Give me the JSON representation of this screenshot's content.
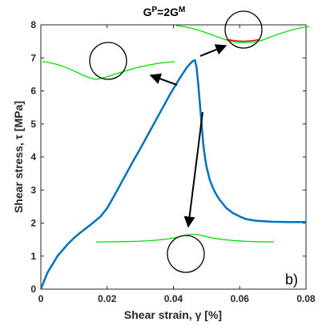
{
  "chart_data": {
    "type": "line",
    "title": "G^P=2G^M",
    "title_parts": {
      "base1": "G",
      "sup1": "P",
      "mid": "=2G",
      "sup2": "M"
    },
    "xlabel": "Shear strain, γ [%]",
    "ylabel": "Shear stress, τ [MPa]",
    "xlim": [
      0,
      0.08
    ],
    "ylim": [
      0,
      8
    ],
    "xticks": [
      0,
      0.02,
      0.04,
      0.06,
      0.08
    ],
    "xtick_labels": [
      "0",
      "0.02",
      "0.04",
      "0.06",
      "0.08"
    ],
    "yticks": [
      0,
      1,
      2,
      3,
      4,
      5,
      6,
      7,
      8
    ],
    "ytick_labels": [
      "0",
      "1",
      "2",
      "3",
      "4",
      "5",
      "6",
      "7",
      "8"
    ],
    "panel_label": "b)",
    "grid": false,
    "series": [
      {
        "color": "#0072bd",
        "x": [
          0,
          0.002,
          0.005,
          0.008,
          0.01,
          0.012,
          0.015,
          0.018,
          0.02,
          0.022,
          0.025,
          0.028,
          0.03,
          0.033,
          0.036,
          0.039,
          0.042,
          0.044,
          0.045,
          0.0458,
          0.0465,
          0.047,
          0.0475,
          0.048,
          0.0485,
          0.049,
          0.0495,
          0.05,
          0.051,
          0.052,
          0.053,
          0.054,
          0.056,
          0.058,
          0.06,
          0.062,
          0.065,
          0.07,
          0.075,
          0.078,
          0.08
        ],
        "y": [
          0,
          0.5,
          1.0,
          1.35,
          1.55,
          1.72,
          1.95,
          2.2,
          2.45,
          2.8,
          3.35,
          3.9,
          4.25,
          4.8,
          5.35,
          5.9,
          6.4,
          6.7,
          6.82,
          6.9,
          6.93,
          6.7,
          6.2,
          5.6,
          5.0,
          4.4,
          4.0,
          3.7,
          3.3,
          3.05,
          2.85,
          2.7,
          2.45,
          2.3,
          2.2,
          2.12,
          2.07,
          2.04,
          2.03,
          2.03,
          2.03
        ]
      }
    ]
  },
  "colors": {
    "curve": "#0072bd",
    "interface": "#00e000",
    "crack": "#e00000",
    "particle": "#000000",
    "arrow": "#000000"
  }
}
